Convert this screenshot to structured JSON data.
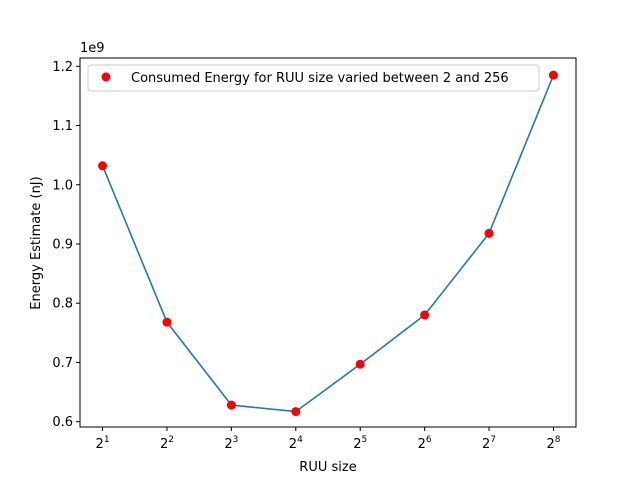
{
  "chart_data": {
    "type": "line",
    "title": "",
    "xlabel": "RUU size",
    "ylabel": "Energy Estimate (nJ)",
    "y_offset_text": "1e9",
    "x_scale": "log2",
    "x": [
      2,
      4,
      8,
      16,
      32,
      64,
      128,
      256
    ],
    "x_tick_labels": [
      {
        "base": "2",
        "exp": "1"
      },
      {
        "base": "2",
        "exp": "2"
      },
      {
        "base": "2",
        "exp": "3"
      },
      {
        "base": "2",
        "exp": "4"
      },
      {
        "base": "2",
        "exp": "5"
      },
      {
        "base": "2",
        "exp": "6"
      },
      {
        "base": "2",
        "exp": "7"
      },
      {
        "base": "2",
        "exp": "8"
      }
    ],
    "y_ticks": [
      0.6,
      0.7,
      0.8,
      0.9,
      1.0,
      1.1,
      1.2
    ],
    "y_tick_labels": [
      "0.6",
      "0.7",
      "0.8",
      "0.9",
      "1.0",
      "1.1",
      "1.2"
    ],
    "ylim": [
      0.591,
      1.214
    ],
    "y_units_multiplier": 1000000000,
    "series": [
      {
        "name": "Consumed Energy for RUU size varied between 2 and 256",
        "values": [
          1.032,
          0.768,
          0.628,
          0.617,
          0.697,
          0.78,
          0.918,
          1.185
        ],
        "line_color": "#1f77b4",
        "marker_color": "#ff0000"
      }
    ],
    "legend_position": "upper-left",
    "grid": false
  }
}
